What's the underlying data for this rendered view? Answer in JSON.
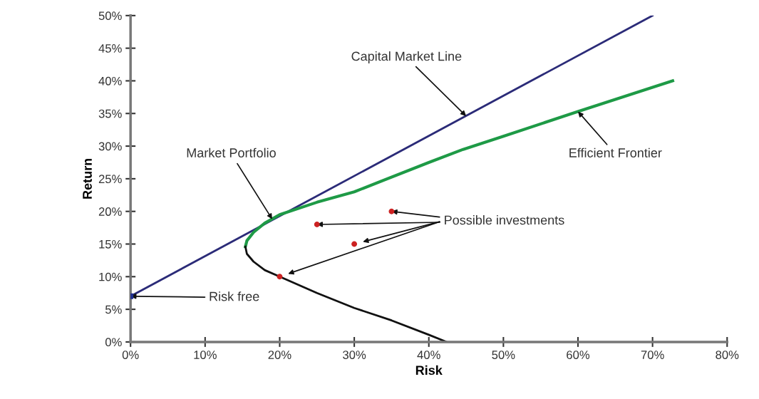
{
  "chart_data": {
    "type": "line",
    "xlabel": "Risk",
    "ylabel": "Return",
    "xlim": [
      0,
      80
    ],
    "ylim": [
      0,
      50
    ],
    "xticks": [
      {
        "value": 0,
        "label": "0%"
      },
      {
        "value": 10,
        "label": "10%"
      },
      {
        "value": 20,
        "label": "20%"
      },
      {
        "value": 30,
        "label": "30%"
      },
      {
        "value": 40,
        "label": "40%"
      },
      {
        "value": 50,
        "label": "50%"
      },
      {
        "value": 60,
        "label": "60%"
      },
      {
        "value": 70,
        "label": "70%"
      },
      {
        "value": 80,
        "label": "80%"
      }
    ],
    "yticks": [
      {
        "value": 0,
        "label": "0%"
      },
      {
        "value": 5,
        "label": "5%"
      },
      {
        "value": 10,
        "label": "10%"
      },
      {
        "value": 15,
        "label": "15%"
      },
      {
        "value": 20,
        "label": "20%"
      },
      {
        "value": 25,
        "label": "25%"
      },
      {
        "value": 30,
        "label": "30%"
      },
      {
        "value": 35,
        "label": "35%"
      },
      {
        "value": 40,
        "label": "40%"
      },
      {
        "value": 45,
        "label": "45%"
      },
      {
        "value": 50,
        "label": "50%"
      }
    ],
    "grid": false,
    "series": [
      {
        "color": "#2b2b78",
        "x": [
          0,
          70
        ],
        "values": [
          7,
          50
        ]
      },
      {
        "color": "#1e9a46",
        "x": [
          15.4,
          15.6,
          16.5,
          18,
          20,
          25,
          30,
          40,
          44.6,
          50,
          60,
          72.7
        ],
        "values": [
          14.6,
          15.5,
          16.8,
          18.2,
          19.5,
          21.4,
          23.0,
          27.5,
          29.5,
          31.5,
          35.3,
          40
        ]
      },
      {
        "color": "#111111",
        "x": [
          15.4,
          15.6,
          16.5,
          18,
          20,
          25,
          30,
          35,
          40,
          42.4
        ],
        "values": [
          14.6,
          13.5,
          12.3,
          11,
          10,
          7.5,
          5.2,
          3.3,
          1.1,
          0
        ]
      },
      {
        "type": "scatter",
        "color": "#cc2222",
        "marker": "circle",
        "x": [
          20,
          25,
          30,
          35
        ],
        "values": [
          10,
          18,
          15,
          20
        ]
      },
      {
        "type": "scatter",
        "color": "#1f2f8f",
        "marker": "square",
        "x": [
          0
        ],
        "values": [
          7
        ]
      }
    ],
    "annotations": [
      {
        "text": "Capital Market Line",
        "x": 45,
        "y": 34.6
      },
      {
        "text": "Efficient Frontier",
        "x": 60,
        "y": 35.3
      },
      {
        "text": "Market Portfolio",
        "x": 19,
        "y": 18.8
      },
      {
        "text": "Risk free",
        "x": 0,
        "y": 7
      },
      {
        "text": "Possible investments",
        "x": 25,
        "y": 18
      }
    ]
  }
}
